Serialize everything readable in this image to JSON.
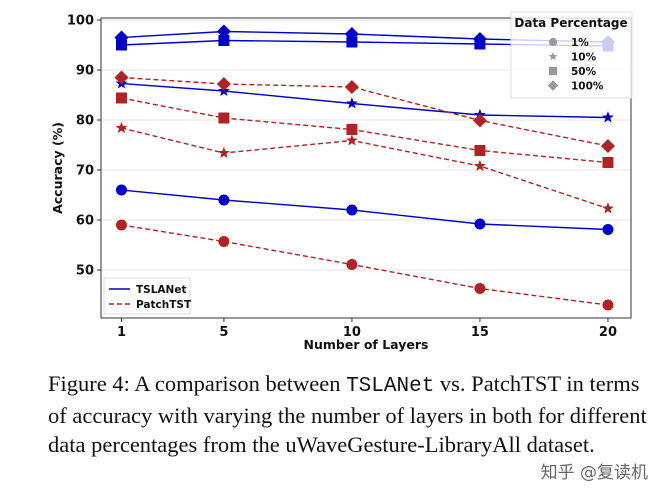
{
  "chart_data": {
    "type": "line",
    "xlabel": "Number of Layers",
    "ylabel": "Accuracy (%)",
    "x": [
      1,
      5,
      10,
      15,
      20
    ],
    "xticks": [
      "1",
      "5",
      "10",
      "15",
      "20"
    ],
    "yticks": [
      50,
      60,
      70,
      80,
      90,
      100
    ],
    "xlim": [
      0.2,
      20.9
    ],
    "ylim": [
      40.4,
      100.4
    ],
    "grid": true,
    "colors": {
      "TSLANet": "#0000cc",
      "PatchTST": "#b22222"
    },
    "legend_models": {
      "placement": "bottom-left",
      "entries": [
        "TSLANet",
        "PatchTST"
      ]
    },
    "legend_data": {
      "placement": "top-right",
      "title": "Data Percentage",
      "entries": [
        {
          "label": "1%",
          "marker": "circle"
        },
        {
          "label": "10%",
          "marker": "star"
        },
        {
          "label": "50%",
          "marker": "square"
        },
        {
          "label": "100%",
          "marker": "diamond"
        }
      ]
    },
    "series": [
      {
        "model": "TSLANet",
        "pct": "100%",
        "marker": "diamond",
        "values": [
          96.5,
          97.7,
          97.2,
          96.2,
          95.6
        ]
      },
      {
        "model": "TSLANet",
        "pct": "50%",
        "marker": "square",
        "values": [
          95.0,
          95.9,
          95.6,
          95.2,
          94.8
        ]
      },
      {
        "model": "TSLANet",
        "pct": "10%",
        "marker": "star",
        "values": [
          87.3,
          85.8,
          83.3,
          81.0,
          80.5
        ]
      },
      {
        "model": "TSLANet",
        "pct": "1%",
        "marker": "circle",
        "values": [
          66.0,
          64.0,
          62.0,
          59.2,
          58.1
        ]
      },
      {
        "model": "PatchTST",
        "pct": "100%",
        "marker": "diamond",
        "values": [
          88.5,
          87.2,
          86.6,
          79.9,
          74.8
        ]
      },
      {
        "model": "PatchTST",
        "pct": "50%",
        "marker": "square",
        "values": [
          84.4,
          80.4,
          78.1,
          73.9,
          71.5
        ]
      },
      {
        "model": "PatchTST",
        "pct": "10%",
        "marker": "star",
        "values": [
          78.4,
          73.4,
          75.9,
          70.8,
          62.3
        ]
      },
      {
        "model": "PatchTST",
        "pct": "1%",
        "marker": "circle",
        "values": [
          59.0,
          55.7,
          51.1,
          46.3,
          43.0
        ]
      }
    ]
  },
  "caption": {
    "prefix": "Figure 4: A comparison between ",
    "mono": "TSLANet",
    "suffix": " vs. PatchTST in terms of accuracy with varying the number of layers in both for different data percentages from the uWaveGesture-LibraryAll dataset."
  },
  "watermark": "知乎 @复读机"
}
